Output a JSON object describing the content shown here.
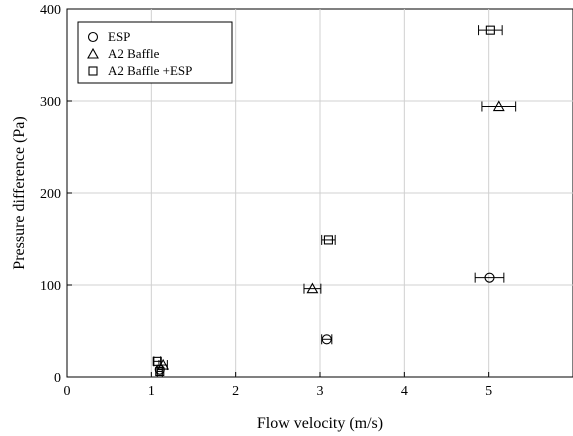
{
  "chart_data": {
    "type": "scatter",
    "xlabel": "Flow velocity (m/s)",
    "ylabel": "Pressure difference (Pa)",
    "xlim": [
      0,
      6
    ],
    "ylim": [
      0,
      400
    ],
    "xticks": [
      0,
      1,
      2,
      3,
      4,
      5
    ],
    "yticks": [
      0,
      100,
      200,
      300,
      400
    ],
    "grid": true,
    "legend_position": "top-left",
    "series": [
      {
        "name": "ESP",
        "marker": "circle",
        "points": [
          {
            "x": 1.1,
            "y": 8,
            "xerr": 0.03
          },
          {
            "x": 3.08,
            "y": 41,
            "xerr": 0.06
          },
          {
            "x": 5.01,
            "y": 108,
            "xerr": 0.17
          }
        ]
      },
      {
        "name": "A2 Baffle",
        "marker": "triangle",
        "points": [
          {
            "x": 1.14,
            "y": 13,
            "xerr": 0.05
          },
          {
            "x": 2.91,
            "y": 96,
            "xerr": 0.1
          },
          {
            "x": 5.12,
            "y": 294,
            "xerr": 0.2
          }
        ]
      },
      {
        "name": "A2 Baffle +ESP",
        "marker": "square",
        "points": [
          {
            "x": 1.07,
            "y": 17,
            "xerr": 0.04
          },
          {
            "x": 1.1,
            "y": 6,
            "xerr": 0.03
          },
          {
            "x": 3.1,
            "y": 149,
            "xerr": 0.08
          },
          {
            "x": 5.02,
            "y": 377,
            "xerr": 0.14
          }
        ]
      }
    ]
  }
}
